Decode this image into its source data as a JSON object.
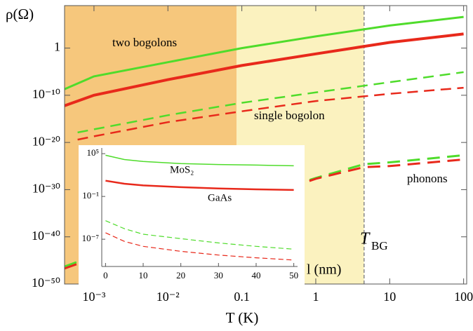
{
  "chart_data": [
    {
      "type": "line",
      "xscale": "log",
      "yscale": "log",
      "xlabel": "T (K)",
      "ylabel": "ρ(Ω)",
      "xlim": [
        0.0004,
        110
      ],
      "ylim": [
        1e-50,
        1000000000.0
      ],
      "xticks": [
        {
          "value": 0.001,
          "label": "10⁻³"
        },
        {
          "value": 0.01,
          "label": "10⁻²"
        },
        0.1,
        1,
        10,
        100
      ],
      "yticks": [
        {
          "value": 1e-50,
          "label": "10⁻⁵⁰"
        },
        {
          "value": 1e-40,
          "label": "10⁻⁴⁰"
        },
        {
          "value": 1e-30,
          "label": "10⁻³⁰"
        },
        {
          "value": 1e-20,
          "label": "10⁻²⁰"
        },
        {
          "value": 1e-10,
          "label": "10⁻¹⁰"
        },
        1
      ],
      "regions": [
        {
          "x": [
            0.0004,
            0.085
          ],
          "color": "#f6c77c"
        },
        {
          "x": [
            0.085,
            4.5
          ],
          "color": "#fbf2bf"
        }
      ],
      "reference_line": {
        "x": 4.5,
        "label": "T",
        "label_subscript": "BG",
        "color": "#888888"
      },
      "annotations": [
        "two bogolons",
        "single bogolon",
        "phonons"
      ],
      "series": [
        {
          "color": "#4fdc2b",
          "style": "solid",
          "width": 3,
          "x": [
            0.0004,
            0.001,
            0.01,
            0.1,
            1,
            10,
            100
          ],
          "values": [
            2e-09,
            1e-06,
            0.001,
            1,
            300,
            60000.0,
            4000000.0
          ]
        },
        {
          "color": "#e8291b",
          "style": "solid",
          "width": 4,
          "x": [
            0.0004,
            0.001,
            0.01,
            0.1,
            1,
            10,
            100
          ],
          "values": [
            6e-13,
            1e-10,
            2e-07,
            0.0002,
            0.06,
            16,
            1000
          ]
        },
        {
          "color": "#4fdc2b",
          "style": "dashed",
          "width": 2.5,
          "x": [
            0.0006,
            0.001,
            0.01,
            0.1,
            1,
            10,
            100
          ],
          "values": [
            1.3e-18,
            6e-18,
            6e-15,
            2.5e-12,
            4e-10,
            6e-08,
            8e-06
          ]
        },
        {
          "color": "#e8291b",
          "style": "dashed",
          "width": 2.5,
          "x": [
            0.0006,
            0.001,
            0.01,
            0.1,
            1,
            10,
            100
          ],
          "values": [
            4e-20,
            2e-19,
            2e-16,
            4e-14,
            6e-12,
            2e-10,
            4e-09
          ]
        },
        {
          "color": "#4fdc2b",
          "style": "dashed",
          "width": 3,
          "x": [
            0.0004,
            0.001,
            0.8,
            1,
            4.5,
            10,
            100
          ],
          "values": [
            5e-47,
            1e-44,
            1e-28,
            3e-28,
            2.5e-25,
            6e-25,
            2e-23
          ]
        },
        {
          "color": "#e8291b",
          "style": "dashed",
          "width": 3,
          "x": [
            0.0004,
            0.001,
            0.8,
            1,
            4.5,
            10,
            100
          ],
          "values": [
            2e-47,
            3e-45,
            6e-29,
            2e-28,
            6e-26,
            1e-25,
            2.5e-24
          ]
        }
      ]
    },
    {
      "type": "line",
      "yscale": "log",
      "xlabel": "l (nm)",
      "xlim": [
        -1,
        51
      ],
      "ylim": [
        1.5e-11,
        400000.0
      ],
      "xticks": [
        0,
        10,
        20,
        30,
        40,
        50
      ],
      "yticks": [
        {
          "value": 100000,
          "label": "10⁵"
        },
        {
          "value": 0.1,
          "label": "10⁻¹"
        },
        {
          "value": 1e-07,
          "label": "10⁻⁷"
        }
      ],
      "annotations": [
        {
          "text": "MoS₂",
          "color": "#4fdc2b"
        },
        {
          "text": "GaAs",
          "color": "#e8291b"
        }
      ],
      "series": [
        {
          "color": "#4fdc2b",
          "style": "solid",
          "width": 1.5,
          "x": [
            0,
            5,
            10,
            20,
            30,
            40,
            50
          ],
          "values": [
            60000.0,
            15000.0,
            8000.0,
            4000.0,
            3000.0,
            2500.0,
            2000.0
          ]
        },
        {
          "color": "#e8291b",
          "style": "solid",
          "width": 2.5,
          "x": [
            0,
            5,
            10,
            20,
            30,
            40,
            50
          ],
          "values": [
            16,
            6,
            3.5,
            2,
            1.3,
            1,
            0.8
          ]
        },
        {
          "color": "#4fdc2b",
          "style": "dashed",
          "width": 1.2,
          "x": [
            0,
            5,
            10,
            20,
            30,
            40,
            50
          ],
          "values": [
            4e-05,
            3e-06,
            5e-07,
            1.2e-07,
            3e-08,
            1e-08,
            4e-09
          ]
        },
        {
          "color": "#e8291b",
          "style": "dashed",
          "width": 1.2,
          "x": [
            0,
            5,
            10,
            20,
            30,
            40,
            50
          ],
          "values": [
            8e-07,
            5e-08,
            1e-08,
            2e-09,
            6e-10,
            2.5e-10,
            1.2e-10
          ]
        }
      ]
    }
  ]
}
